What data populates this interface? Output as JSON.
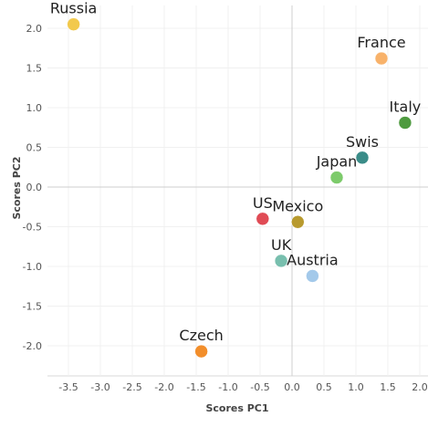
{
  "chart_data": {
    "type": "scatter",
    "title": "",
    "xlabel": "Scores PC1",
    "ylabel": "Scores PC2",
    "xlim": [
      -3.7,
      2.1
    ],
    "ylim": [
      -2.35,
      2.15
    ],
    "xticks": [
      -3.5,
      -3.0,
      -2.5,
      -2.0,
      -1.5,
      -1.0,
      -0.5,
      0.0,
      0.5,
      1.0,
      1.5,
      2.0
    ],
    "xtick_labels": [
      "-3.5",
      "-3.0",
      "-2.5",
      "-2.0",
      "-1.5",
      "-1.0",
      "-0.5",
      "0.0",
      "0.5",
      "1.0",
      "1.5",
      "2.0"
    ],
    "yticks": [
      2.0,
      1.5,
      1.0,
      0.5,
      0.0,
      -0.5,
      -1.0,
      -1.5,
      -2.0
    ],
    "ytick_labels": [
      "2.0",
      "1.5",
      "1.0",
      "0.5",
      "0.0",
      "-0.5",
      "-1.0",
      "-1.5",
      "-2.0"
    ],
    "grid": true,
    "legend": "none",
    "zero_lines": true,
    "points": [
      {
        "label": "Russia",
        "x": -3.42,
        "y": 2.05,
        "color": "#F2C94C"
      },
      {
        "label": "France",
        "x": 1.4,
        "y": 1.62,
        "color": "#F8B26A"
      },
      {
        "label": "Italy",
        "x": 1.77,
        "y": 0.81,
        "color": "#4E9A3F"
      },
      {
        "label": "Swis",
        "x": 1.1,
        "y": 0.37,
        "color": "#3A8C88"
      },
      {
        "label": "Japan",
        "x": 0.7,
        "y": 0.12,
        "color": "#7DCB6B"
      },
      {
        "label": "US",
        "x": -0.46,
        "y": -0.4,
        "color": "#E04B55"
      },
      {
        "label": "Mexico",
        "x": 0.09,
        "y": -0.44,
        "color": "#B89A2E"
      },
      {
        "label": "UK",
        "x": -0.17,
        "y": -0.93,
        "color": "#78BFAE"
      },
      {
        "label": "Austria",
        "x": 0.32,
        "y": -1.12,
        "color": "#A3C9EA"
      },
      {
        "label": "Czech",
        "x": -1.42,
        "y": -2.07,
        "color": "#F28E2B"
      }
    ]
  }
}
